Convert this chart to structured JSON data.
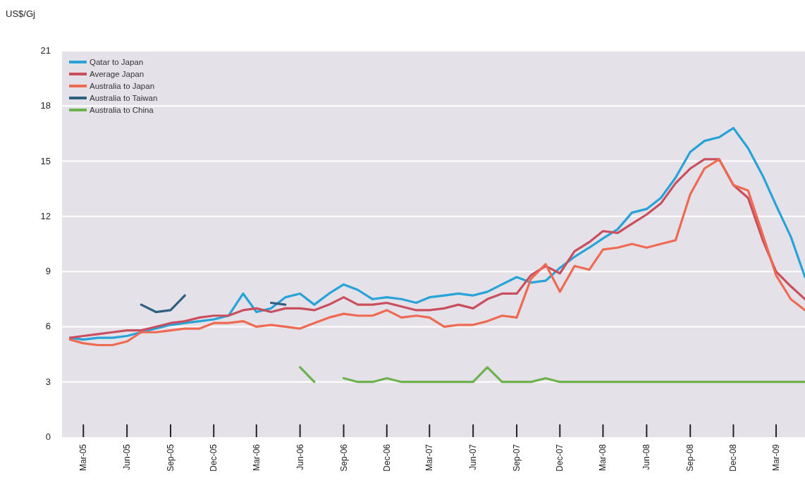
{
  "chart_data": {
    "type": "line",
    "ylabel": "US$/Gj",
    "x": [
      "2005-02",
      "2005-03",
      "2005-04",
      "2005-05",
      "2005-06",
      "2005-07",
      "2005-08",
      "2005-09",
      "2005-10",
      "2005-11",
      "2005-12",
      "2006-01",
      "2006-02",
      "2006-03",
      "2006-04",
      "2006-05",
      "2006-06",
      "2006-07",
      "2006-08",
      "2006-09",
      "2006-10",
      "2006-11",
      "2006-12",
      "2007-01",
      "2007-02",
      "2007-03",
      "2007-04",
      "2007-05",
      "2007-06",
      "2007-07",
      "2007-08",
      "2007-09",
      "2007-10",
      "2007-11",
      "2007-12",
      "2008-01",
      "2008-02",
      "2008-03",
      "2008-04",
      "2008-05",
      "2008-06",
      "2008-07",
      "2008-08",
      "2008-09",
      "2008-10",
      "2008-11",
      "2008-12",
      "2009-01",
      "2009-02",
      "2009-03",
      "2009-04",
      "2009-05"
    ],
    "series": [
      {
        "name": "Qatar to Japan",
        "color": "#27a3d8",
        "values": [
          5.4,
          5.3,
          5.4,
          5.4,
          5.5,
          5.7,
          5.9,
          6.1,
          6.2,
          6.3,
          6.4,
          6.6,
          7.8,
          6.8,
          7.0,
          7.6,
          7.8,
          7.2,
          7.8,
          8.3,
          8.0,
          7.5,
          7.6,
          7.5,
          7.3,
          7.6,
          7.7,
          7.8,
          7.7,
          7.9,
          8.3,
          8.7,
          8.4,
          8.5,
          9.2,
          9.8,
          10.3,
          10.8,
          11.3,
          12.2,
          12.4,
          13.0,
          14.1,
          15.5,
          16.1,
          16.3,
          16.8,
          15.7,
          14.2,
          12.6,
          10.9,
          8.7
        ]
      },
      {
        "name": "Average Japan",
        "color": "#c94f5e",
        "values": [
          5.4,
          5.5,
          5.6,
          5.7,
          5.8,
          5.8,
          6.0,
          6.2,
          6.3,
          6.5,
          6.6,
          6.6,
          6.9,
          7.0,
          6.8,
          7.0,
          7.0,
          6.9,
          7.2,
          7.6,
          7.2,
          7.2,
          7.3,
          7.1,
          6.9,
          6.9,
          7.0,
          7.2,
          7.0,
          7.5,
          7.8,
          7.8,
          8.8,
          9.3,
          8.9,
          10.1,
          10.6,
          11.2,
          11.1,
          11.6,
          12.1,
          12.7,
          13.8,
          14.6,
          15.1,
          15.1,
          13.7,
          13.0,
          10.7,
          9.0,
          8.2,
          7.5
        ]
      },
      {
        "name": "Australia to Japan",
        "color": "#ef6a52",
        "values": [
          5.3,
          5.1,
          5.0,
          5.0,
          5.2,
          5.7,
          5.7,
          5.8,
          5.9,
          5.9,
          6.2,
          6.2,
          6.3,
          6.0,
          6.1,
          6.0,
          5.9,
          6.2,
          6.5,
          6.7,
          6.6,
          6.6,
          6.9,
          6.5,
          6.6,
          6.5,
          6.0,
          6.1,
          6.1,
          6.3,
          6.6,
          6.5,
          8.6,
          9.4,
          7.9,
          9.3,
          9.1,
          10.2,
          10.3,
          10.5,
          10.3,
          10.5,
          10.7,
          13.2,
          14.6,
          15.1,
          13.7,
          13.4,
          11.0,
          8.8,
          7.5,
          6.9
        ]
      },
      {
        "name": "Australia to Taiwan",
        "color": "#2f5f80",
        "values": [
          null,
          null,
          null,
          null,
          null,
          7.2,
          6.8,
          6.9,
          7.7,
          null,
          null,
          null,
          null,
          null,
          7.3,
          7.2,
          null,
          null,
          null,
          null,
          null,
          null,
          null,
          null,
          null,
          null,
          null,
          null,
          null,
          null,
          null,
          null,
          null,
          null,
          null,
          null,
          null,
          null,
          null,
          null,
          null,
          null,
          null,
          null,
          null,
          null,
          null,
          null,
          null,
          null,
          null,
          null
        ]
      },
      {
        "name": "Australia to China",
        "color": "#6cb24e",
        "values": [
          null,
          null,
          null,
          null,
          null,
          null,
          null,
          null,
          null,
          null,
          null,
          null,
          null,
          null,
          null,
          null,
          3.8,
          3.0,
          null,
          3.2,
          3.0,
          3.0,
          3.2,
          3.0,
          3.0,
          3.0,
          3.0,
          3.0,
          3.0,
          3.8,
          3.0,
          3.0,
          3.0,
          3.2,
          3.0,
          3.0,
          3.0,
          3.0,
          3.0,
          3.0,
          3.0,
          3.0,
          3.0,
          3.0,
          3.0,
          3.0,
          3.0,
          3.0,
          3.0,
          3.0,
          3.0,
          3.0
        ]
      }
    ],
    "xlim": [
      "2005-01-15",
      "2009-05-01"
    ],
    "xticks": [
      {
        "value": "2005-03",
        "label": "Mar-05"
      },
      {
        "value": "2005-06",
        "label": "Jun-05"
      },
      {
        "value": "2005-09",
        "label": "Sep-05"
      },
      {
        "value": "2005-12",
        "label": "Dec-05"
      },
      {
        "value": "2006-03",
        "label": "Mar-06"
      },
      {
        "value": "2006-06",
        "label": "Jun-06"
      },
      {
        "value": "2006-09",
        "label": "Sep-06"
      },
      {
        "value": "2006-12",
        "label": "Dec-06"
      },
      {
        "value": "2007-03",
        "label": "Mar-07"
      },
      {
        "value": "2007-06",
        "label": "Jun-07"
      },
      {
        "value": "2007-09",
        "label": "Sep-07"
      },
      {
        "value": "2007-12",
        "label": "Dec-07"
      },
      {
        "value": "2008-03",
        "label": "Mar-08"
      },
      {
        "value": "2008-06",
        "label": "Jun-08"
      },
      {
        "value": "2008-09",
        "label": "Sep-08"
      },
      {
        "value": "2008-12",
        "label": "Dec-08"
      },
      {
        "value": "2009-03",
        "label": "Mar-09"
      }
    ],
    "ylim": [
      0,
      21
    ],
    "yticks": [
      0,
      3,
      6,
      9,
      12,
      15,
      18,
      21
    ],
    "grid": "y",
    "legend": "top left",
    "marker": "none",
    "line_style": "solid"
  }
}
